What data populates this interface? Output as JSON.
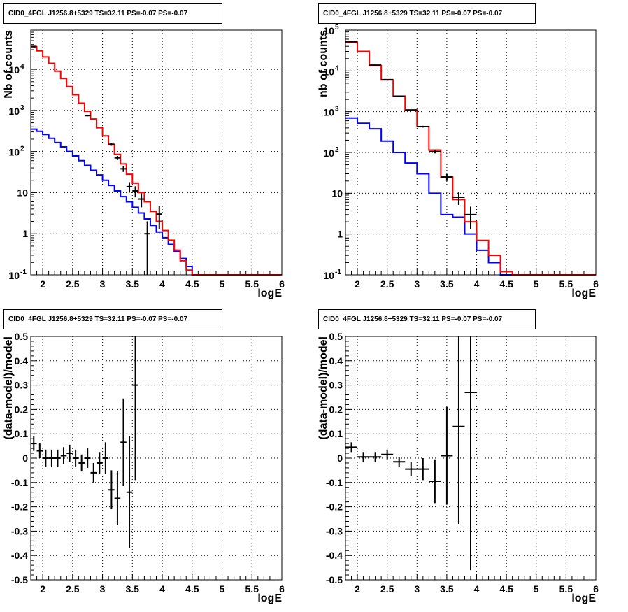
{
  "panel_title": "CID0_4FGL J1256.8+5329 TS=32.11 PS=-0.07 PS=-0.07",
  "colors": {
    "total_model": "#ff0000",
    "component": "#0000ff",
    "data": "#000000"
  },
  "chart_data": [
    {
      "type": "line",
      "title": "CID0_4FGL J1256.8+5329 TS=32.11 PS=-0.07 PS=-0.07",
      "xlabel": "logE",
      "ylabel": "Nb of counts",
      "xlim": [
        1.8,
        6.0
      ],
      "ylim": [
        0.1,
        90000
      ],
      "yscale": "log",
      "grid": true,
      "xticks": [
        "2",
        "2.5",
        "3",
        "3.5",
        "4",
        "4.5",
        "5",
        "5.5",
        "6"
      ],
      "yticks": [
        "10^-1",
        "1",
        "10",
        "10^2",
        "10^3",
        "10^4"
      ],
      "bin_edges": [
        1.8,
        1.9,
        2.0,
        2.1,
        2.2,
        2.3,
        2.4,
        2.5,
        2.6,
        2.7,
        2.8,
        2.9,
        3.0,
        3.1,
        3.2,
        3.3,
        3.4,
        3.5,
        3.6,
        3.7,
        3.8,
        3.9,
        4.0,
        4.1,
        4.2,
        4.3,
        4.4,
        4.5,
        4.6,
        4.7,
        4.8,
        4.9,
        5.0,
        5.1,
        5.2,
        5.3,
        5.4,
        5.5,
        5.6,
        5.7,
        5.8,
        5.9,
        6.0
      ],
      "series": [
        {
          "role": "total",
          "values": [
            35000,
            28000,
            20000,
            14000,
            9000,
            6000,
            3800,
            2400,
            1500,
            950,
            620,
            380,
            240,
            145,
            85,
            50,
            28,
            17,
            10,
            6,
            3.5,
            2,
            1.2,
            0.7,
            0.4,
            0.22,
            0.13,
            0.1,
            0.1,
            0.1,
            0.1,
            0.1,
            0.1,
            0.1,
            0.1,
            0.1,
            0.1,
            0.1,
            0.1,
            0.1,
            0.1,
            0.1
          ]
        },
        {
          "role": "component",
          "values": [
            350,
            310,
            260,
            210,
            165,
            130,
            100,
            78,
            60,
            46,
            35,
            27,
            20,
            15,
            11,
            8,
            6,
            4.4,
            3.2,
            2.3,
            1.6,
            1.1,
            0.8,
            0.55,
            0.37,
            0.25,
            0.16,
            0.1,
            0.1,
            0.1,
            0.1,
            0.1,
            0.1,
            0.1,
            0.1,
            0.1,
            0.1,
            0.1,
            0.1,
            0.1,
            0.1,
            0.1
          ]
        },
        {
          "role": "data",
          "points": [
            {
              "x": 1.85,
              "y": 36000,
              "yerr": [
                190,
                190
              ]
            },
            {
              "x": 2.75,
              "y": 750,
              "yerr": [
                27,
                27
              ]
            },
            {
              "x": 3.15,
              "y": 150,
              "yerr": [
                12,
                12
              ]
            },
            {
              "x": 3.25,
              "y": 70,
              "yerr": [
                8,
                8
              ]
            },
            {
              "x": 3.35,
              "y": 38,
              "yerr": [
                6,
                6
              ]
            },
            {
              "x": 3.45,
              "y": 14,
              "yerr": [
                4,
                4
              ]
            },
            {
              "x": 3.55,
              "y": 11,
              "yerr": [
                3.3,
                3.3
              ]
            },
            {
              "x": 3.65,
              "y": 7,
              "yerr": [
                2.6,
                2.6
              ]
            },
            {
              "x": 3.75,
              "y": 1,
              "yerr": [
                0.95,
                1
              ]
            },
            {
              "x": 3.95,
              "y": 3,
              "yerr": [
                1.7,
                1.7
              ]
            }
          ]
        }
      ]
    },
    {
      "type": "line",
      "title": "CID0_4FGL J1256.8+5329 TS=32.11 PS=-0.07 PS=-0.07",
      "xlabel": "logE",
      "ylabel": "nb of counts",
      "xlim": [
        1.8,
        6.0
      ],
      "ylim": [
        0.1,
        100000
      ],
      "yscale": "log",
      "grid": true,
      "xticks": [
        "2",
        "2.5",
        "3",
        "3.5",
        "4",
        "4.5",
        "5",
        "5.5",
        "6"
      ],
      "yticks": [
        "10^-1",
        "1",
        "10",
        "10^2",
        "10^3",
        "10^4",
        "10^5"
      ],
      "bin_edges": [
        1.8,
        2.0,
        2.2,
        2.4,
        2.6,
        2.8,
        3.0,
        3.2,
        3.4,
        3.6,
        3.8,
        4.0,
        4.2,
        4.4,
        4.6,
        4.8,
        5.0,
        5.2,
        5.4,
        5.6,
        5.8,
        6.0
      ],
      "series": [
        {
          "role": "total",
          "values": [
            50000,
            30000,
            13500,
            6000,
            2400,
            1100,
            430,
            115,
            25,
            7,
            2,
            0.7,
            0.3,
            0.12,
            0.1,
            0.1,
            0.1,
            0.1,
            0.1,
            0.1,
            0.1
          ]
        },
        {
          "role": "component",
          "values": [
            700,
            520,
            380,
            190,
            100,
            55,
            30,
            10,
            3,
            2.6,
            1,
            0.4,
            0.2,
            0.1,
            0.1,
            0.1,
            0.1,
            0.1,
            0.1,
            0.1,
            0.1
          ]
        },
        {
          "role": "data",
          "points": [
            {
              "x": 1.9,
              "y": 52000,
              "yerr": [
                230,
                230
              ]
            },
            {
              "x": 2.3,
              "y": 13800,
              "yerr": [
                117,
                117
              ]
            },
            {
              "x": 2.5,
              "y": 6100,
              "yerr": [
                78,
                78
              ]
            },
            {
              "x": 2.7,
              "y": 2400,
              "yerr": [
                49,
                49
              ]
            },
            {
              "x": 2.9,
              "y": 1100,
              "yerr": [
                33,
                33
              ]
            },
            {
              "x": 3.1,
              "y": 430,
              "yerr": [
                21,
                21
              ]
            },
            {
              "x": 3.3,
              "y": 105,
              "yerr": [
                10,
                10
              ]
            },
            {
              "x": 3.5,
              "y": 25,
              "yerr": [
                5,
                5
              ]
            },
            {
              "x": 3.7,
              "y": 8,
              "yerr": [
                2.8,
                2.8
              ]
            },
            {
              "x": 3.9,
              "y": 3,
              "yerr": [
                1.7,
                1.7
              ]
            }
          ]
        }
      ]
    },
    {
      "type": "scatter",
      "title": "CID0_4FGL J1256.8+5329 TS=32.11 PS=-0.07 PS=-0.07",
      "xlabel": "logE",
      "ylabel": "(data-model)/model",
      "xlim": [
        1.8,
        6.0
      ],
      "ylim": [
        -0.5,
        0.5
      ],
      "grid": true,
      "xticks": [
        "2",
        "2.5",
        "3",
        "3.5",
        "4",
        "4.5",
        "5",
        "5.5",
        "6"
      ],
      "yticks": [
        "-0.5",
        "-0.4",
        "-0.3",
        "-0.2",
        "-0.1",
        "0",
        "0.1",
        "0.2",
        "0.3",
        "0.4",
        "0.5"
      ],
      "points": [
        {
          "x": 1.85,
          "y": 0.06,
          "xerr": 0.05,
          "yerr": 0.03
        },
        {
          "x": 1.95,
          "y": 0.03,
          "xerr": 0.05,
          "yerr": 0.03
        },
        {
          "x": 2.05,
          "y": 0.0,
          "xerr": 0.05,
          "yerr": 0.035
        },
        {
          "x": 2.15,
          "y": 0.0,
          "xerr": 0.05,
          "yerr": 0.035
        },
        {
          "x": 2.25,
          "y": 0.0,
          "xerr": 0.05,
          "yerr": 0.035
        },
        {
          "x": 2.35,
          "y": 0.01,
          "xerr": 0.05,
          "yerr": 0.035
        },
        {
          "x": 2.45,
          "y": 0.02,
          "xerr": 0.05,
          "yerr": 0.035
        },
        {
          "x": 2.55,
          "y": 0.0,
          "xerr": 0.05,
          "yerr": 0.035
        },
        {
          "x": 2.65,
          "y": -0.02,
          "xerr": 0.05,
          "yerr": 0.035
        },
        {
          "x": 2.75,
          "y": 0.0,
          "xerr": 0.05,
          "yerr": 0.04
        },
        {
          "x": 2.85,
          "y": -0.06,
          "xerr": 0.05,
          "yerr": 0.04
        },
        {
          "x": 2.95,
          "y": -0.02,
          "xerr": 0.05,
          "yerr": 0.045
        },
        {
          "x": 3.05,
          "y": 0.0,
          "xerr": 0.05,
          "yerr": 0.065
        },
        {
          "x": 3.15,
          "y": -0.13,
          "xerr": 0.05,
          "yerr": 0.08
        },
        {
          "x": 3.25,
          "y": -0.165,
          "xerr": 0.05,
          "yerr": 0.11
        },
        {
          "x": 3.35,
          "y": 0.065,
          "xerr": 0.05,
          "yerr": 0.18
        },
        {
          "x": 3.45,
          "y": -0.14,
          "xerr": 0.05,
          "yerr": 0.23
        },
        {
          "x": 3.55,
          "y": 0.3,
          "xerr": 0.05,
          "yerr": 0.39
        }
      ]
    },
    {
      "type": "scatter",
      "title": "CID0_4FGL J1256.8+5329 TS=32.11 PS=-0.07 PS=-0.07",
      "xlabel": "logE",
      "ylabel": "(data-model)/model",
      "xlim": [
        1.8,
        6.0
      ],
      "ylim": [
        -0.5,
        0.5
      ],
      "grid": true,
      "xticks": [
        "2",
        "2.5",
        "3",
        "3.5",
        "4",
        "4.5",
        "5",
        "5.5",
        "6"
      ],
      "yticks": [
        "-0.5",
        "-0.4",
        "-0.3",
        "-0.2",
        "-0.1",
        "0",
        "0.1",
        "0.2",
        "0.3",
        "0.4",
        "0.5"
      ],
      "points": [
        {
          "x": 1.9,
          "y": 0.045,
          "xerr": 0.1,
          "yerr": 0.02
        },
        {
          "x": 2.1,
          "y": 0.005,
          "xerr": 0.1,
          "yerr": 0.02
        },
        {
          "x": 2.3,
          "y": 0.005,
          "xerr": 0.1,
          "yerr": 0.02
        },
        {
          "x": 2.5,
          "y": 0.015,
          "xerr": 0.1,
          "yerr": 0.02
        },
        {
          "x": 2.7,
          "y": -0.015,
          "xerr": 0.1,
          "yerr": 0.02
        },
        {
          "x": 2.9,
          "y": -0.045,
          "xerr": 0.1,
          "yerr": 0.03
        },
        {
          "x": 3.1,
          "y": -0.045,
          "xerr": 0.1,
          "yerr": 0.045
        },
        {
          "x": 3.3,
          "y": -0.095,
          "xerr": 0.1,
          "yerr": 0.09
        },
        {
          "x": 3.5,
          "y": 0.01,
          "xerr": 0.1,
          "yerr": 0.2
        },
        {
          "x": 3.7,
          "y": 0.13,
          "xerr": 0.1,
          "yerr": 0.4
        },
        {
          "x": 3.9,
          "y": 0.27,
          "xerr": 0.1,
          "yerr": 0.73
        }
      ]
    }
  ]
}
